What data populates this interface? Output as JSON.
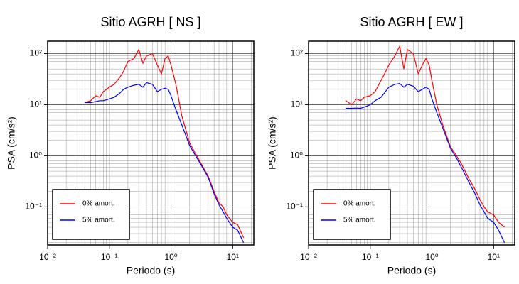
{
  "chart_data": [
    {
      "type": "line",
      "title": "Sitio AGRH [ NS ]",
      "xlabel": "Periodo (s)",
      "ylabel": "PSA (cm/s²)",
      "xscale": "log",
      "yscale": "log",
      "grid": true,
      "legend": "lower left",
      "xlim": [
        0.01,
        22
      ],
      "ylim": [
        0.018,
        175
      ],
      "xticks": [
        {
          "value": 0.01,
          "label": "10⁻²"
        },
        {
          "value": 0.1,
          "label": "10⁻¹"
        },
        {
          "value": 1,
          "label": "10⁰"
        },
        {
          "value": 10,
          "label": "10¹"
        }
      ],
      "yticks": [
        {
          "value": 0.1,
          "label": "10⁻¹"
        },
        {
          "value": 1,
          "label": "10⁰"
        },
        {
          "value": 10,
          "label": "10¹"
        },
        {
          "value": 100,
          "label": "10²"
        }
      ],
      "x": [
        0.04,
        0.05,
        0.06,
        0.07,
        0.08,
        0.1,
        0.12,
        0.15,
        0.17,
        0.2,
        0.25,
        0.3,
        0.35,
        0.4,
        0.5,
        0.6,
        0.7,
        0.8,
        0.9,
        1.0,
        1.2,
        1.5,
        2,
        2.5,
        3,
        4,
        5,
        6,
        7,
        8,
        10,
        12,
        15
      ],
      "series": [
        {
          "name": "0% amort.",
          "color": "#ff0000",
          "values": [
            11,
            12,
            15,
            14,
            18,
            22,
            25,
            35,
            45,
            70,
            80,
            120,
            65,
            90,
            100,
            60,
            40,
            80,
            90,
            60,
            25,
            6,
            1.8,
            1.1,
            0.75,
            0.4,
            0.2,
            0.12,
            0.1,
            0.07,
            0.05,
            0.045,
            0.025
          ]
        },
        {
          "name": "5% amort.",
          "color": "#0000ff",
          "values": [
            11,
            11,
            11.5,
            12,
            12,
            13,
            14,
            17,
            20,
            22,
            24,
            25,
            22,
            27,
            25,
            18,
            20,
            21,
            20,
            15,
            8,
            4,
            1.6,
            1.0,
            0.7,
            0.38,
            0.18,
            0.11,
            0.08,
            0.06,
            0.04,
            0.035,
            0.02
          ]
        }
      ]
    },
    {
      "type": "line",
      "title": "Sitio AGRH [ EW ]",
      "xlabel": "Periodo (s)",
      "ylabel": "PSA (cm/s²)",
      "xscale": "log",
      "yscale": "log",
      "grid": true,
      "legend": "lower left",
      "xlim": [
        0.01,
        22
      ],
      "ylim": [
        0.018,
        175
      ],
      "xticks": [
        {
          "value": 0.01,
          "label": "10⁻²"
        },
        {
          "value": 0.1,
          "label": "10⁻¹"
        },
        {
          "value": 1,
          "label": "10⁰"
        },
        {
          "value": 10,
          "label": "10¹"
        }
      ],
      "yticks": [
        {
          "value": 0.1,
          "label": "10⁻¹"
        },
        {
          "value": 1,
          "label": "10⁰"
        },
        {
          "value": 10,
          "label": "10¹"
        },
        {
          "value": 100,
          "label": "10²"
        }
      ],
      "x": [
        0.04,
        0.05,
        0.06,
        0.07,
        0.08,
        0.1,
        0.12,
        0.15,
        0.17,
        0.2,
        0.25,
        0.3,
        0.35,
        0.4,
        0.5,
        0.6,
        0.7,
        0.8,
        0.9,
        1.0,
        1.2,
        1.5,
        2,
        2.5,
        3,
        4,
        5,
        6,
        7,
        8,
        10,
        12,
        15
      ],
      "series": [
        {
          "name": "0% amort.",
          "color": "#ff0000",
          "values": [
            12,
            10,
            13,
            12,
            14,
            15,
            18,
            30,
            40,
            60,
            90,
            140,
            50,
            120,
            100,
            40,
            60,
            80,
            60,
            30,
            10,
            4,
            1.5,
            1.0,
            0.7,
            0.35,
            0.22,
            0.14,
            0.1,
            0.08,
            0.07,
            0.05,
            0.04
          ]
        },
        {
          "name": "5% amort.",
          "color": "#0000ff",
          "values": [
            8.5,
            8.5,
            8.6,
            8.5,
            9,
            10,
            12,
            14,
            17,
            22,
            25,
            26,
            22,
            25,
            23,
            18,
            20,
            22,
            20,
            13,
            7,
            3.5,
            1.4,
            0.9,
            0.6,
            0.3,
            0.18,
            0.11,
            0.08,
            0.06,
            0.05,
            0.035,
            0.02
          ]
        }
      ]
    }
  ]
}
